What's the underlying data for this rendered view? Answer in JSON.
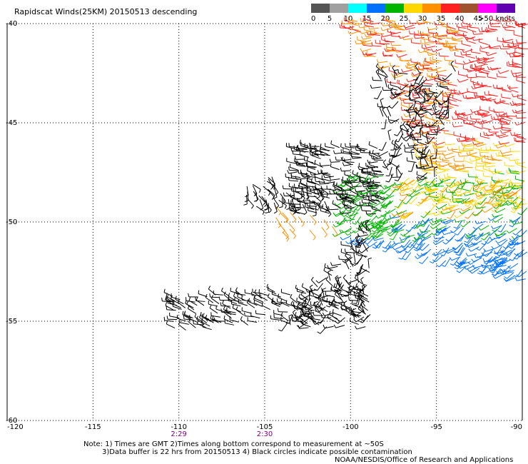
{
  "title": "Rapidscat Winds(25KM) 20150513 descending",
  "legend": {
    "labels": [
      "0",
      "5",
      "10",
      "15",
      "20",
      "25",
      "30",
      "35",
      "40",
      "45",
      ">50 knots"
    ],
    "colors": [
      "#555555",
      "#a0a0a0",
      "#00ffff",
      "#0070ff",
      "#00b400",
      "#ffd700",
      "#ff9000",
      "#ff2020",
      "#a0522d",
      "#ff00ff",
      "#6000b0"
    ]
  },
  "axes": {
    "lon_labels": [
      "-120",
      "-115",
      "-110",
      "-105",
      "-100",
      "-95",
      "-90"
    ],
    "lat_labels": [
      "-40",
      "-45",
      "-50",
      "-55",
      "-60"
    ]
  },
  "time_labels": [
    {
      "lon": -110,
      "text": "2:29"
    },
    {
      "lon": -105,
      "text": "2:30"
    }
  ],
  "notes": [
    "Note: 1) Times are GMT 2)Times along bottom correspond to measurement at ~50S",
    "3)Data buffer is 22 hrs from 20150513 4) Black circles indicate possible contamination",
    "NOAA/NESDIS/Office of Research and Applications"
  ]
}
